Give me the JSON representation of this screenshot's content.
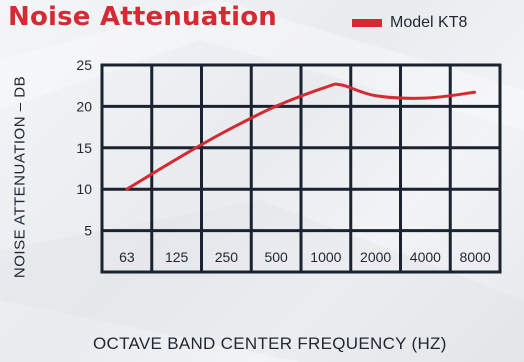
{
  "chart_data": {
    "type": "line",
    "title": "Noise Attenuation",
    "xlabel": "OCTAVE BAND CENTER FREQUENCY (HZ)",
    "ylabel": "NOISE ATTENUATION – DB",
    "x_categories": [
      "63",
      "125",
      "250",
      "500",
      "1000",
      "2000",
      "4000",
      "8000"
    ],
    "y_ticks": [
      "5",
      "10",
      "15",
      "20",
      "25"
    ],
    "ylim": [
      0,
      25
    ],
    "grid": true,
    "legend_position": "top-right",
    "series": [
      {
        "name": "Model KT8",
        "color": "#d42a33",
        "x": [
          63,
          125,
          250,
          500,
          1000,
          1250,
          2000,
          4000,
          8000
        ],
        "y": [
          10,
          13.6,
          17,
          20,
          22.3,
          22.6,
          21.3,
          21,
          21.7
        ]
      }
    ]
  }
}
